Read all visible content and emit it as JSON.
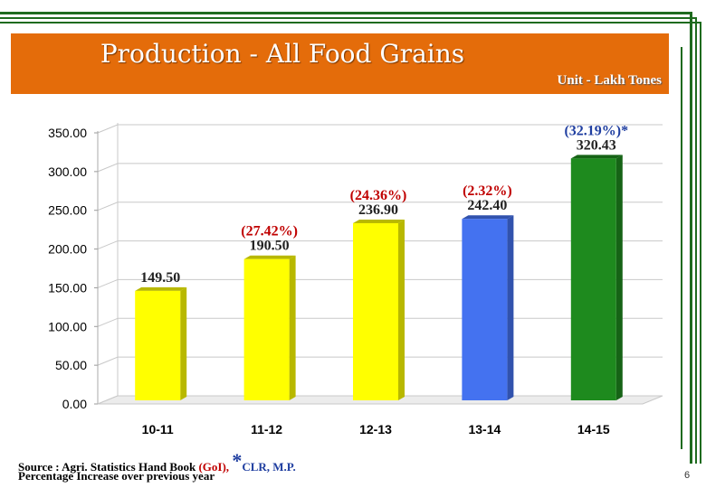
{
  "header": {
    "title": "Production - All Food Grains",
    "unit": "Unit - Lakh Tones"
  },
  "chart_data": {
    "type": "bar",
    "categories": [
      "10-11",
      "11-12",
      "12-13",
      "13-14",
      "14-15"
    ],
    "values": [
      149.5,
      190.5,
      236.9,
      242.4,
      320.43
    ],
    "value_labels": [
      "149.50",
      "190.50",
      "236.90",
      "242.40",
      "320.43"
    ],
    "pct_labels": [
      "",
      "(27.42%)",
      "(24.36%)",
      "(2.32%)",
      "(32.19%)*"
    ],
    "bar_colors": [
      "#ffff00",
      "#ffff00",
      "#ffff00",
      "#4472f0",
      "#1e8a1e"
    ],
    "yticks": [
      "0.00",
      "50.00",
      "100.00",
      "150.00",
      "200.00",
      "250.00",
      "300.00",
      "350.00"
    ],
    "ylim": [
      0,
      350
    ],
    "grid": true,
    "xlabel": "",
    "ylabel": "",
    "title": ""
  },
  "footer": {
    "source_prefix": "Source  : Agri. Statistics Hand Book ",
    "source_goi": "(GoI),",
    "asterisk": "*",
    "source_clr": "CLR, M.P.",
    "note": "Percentage Increase over previous year",
    "page_number": "6"
  },
  "colors": {
    "header_bg": "#e46c0a",
    "pct_label": "#c00000",
    "pct_label_last": "#1f3ea0",
    "border_green": "#1e6b1e"
  }
}
